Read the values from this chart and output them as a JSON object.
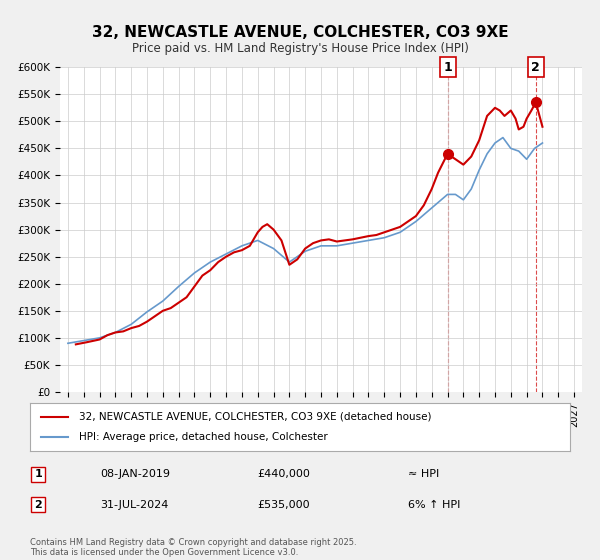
{
  "title": "32, NEWCASTLE AVENUE, COLCHESTER, CO3 9XE",
  "subtitle": "Price paid vs. HM Land Registry's House Price Index (HPI)",
  "background_color": "#f0f0f0",
  "plot_bg_color": "#ffffff",
  "line_color": "#cc0000",
  "hpi_color": "#6699cc",
  "ylim": [
    0,
    600000
  ],
  "xlim_min": 1994.5,
  "xlim_max": 2027.5,
  "yticks": [
    0,
    50000,
    100000,
    150000,
    200000,
    250000,
    300000,
    350000,
    400000,
    450000,
    500000,
    550000,
    600000
  ],
  "ytick_labels": [
    "£0",
    "£50K",
    "£100K",
    "£150K",
    "£200K",
    "£250K",
    "£300K",
    "£350K",
    "£400K",
    "£450K",
    "£500K",
    "£550K",
    "£600K"
  ],
  "xticks": [
    1995,
    1996,
    1997,
    1998,
    1999,
    2000,
    2001,
    2002,
    2003,
    2004,
    2005,
    2006,
    2007,
    2008,
    2009,
    2010,
    2011,
    2012,
    2013,
    2014,
    2015,
    2016,
    2017,
    2018,
    2019,
    2020,
    2021,
    2022,
    2023,
    2024,
    2025,
    2026,
    2027
  ],
  "marker1_x": 2019.03,
  "marker1_y": 440000,
  "marker1_label": "1",
  "marker1_date": "08-JAN-2019",
  "marker1_price": "£440,000",
  "marker1_hpi": "≈ HPI",
  "marker2_x": 2024.58,
  "marker2_y": 535000,
  "marker2_label": "2",
  "marker2_date": "31-JUL-2024",
  "marker2_price": "£535,000",
  "marker2_hpi": "6% ↑ HPI",
  "legend_line1": "32, NEWCASTLE AVENUE, COLCHESTER, CO3 9XE (detached house)",
  "legend_line2": "HPI: Average price, detached house, Colchester",
  "footnote": "Contains HM Land Registry data © Crown copyright and database right 2025.\nThis data is licensed under the Open Government Licence v3.0.",
  "hpi_data_x": [
    1995,
    1996,
    1997,
    1998,
    1999,
    2000,
    2001,
    2002,
    2003,
    2004,
    2005,
    2006,
    2007,
    2008,
    2009,
    2010,
    2011,
    2012,
    2013,
    2014,
    2015,
    2016,
    2017,
    2018,
    2019,
    2019.5,
    2020,
    2020.5,
    2021,
    2021.5,
    2022,
    2022.5,
    2023,
    2023.5,
    2024,
    2024.5,
    2025
  ],
  "hpi_data_y": [
    90000,
    95000,
    100000,
    110000,
    125000,
    148000,
    168000,
    195000,
    220000,
    240000,
    255000,
    270000,
    280000,
    265000,
    240000,
    260000,
    270000,
    270000,
    275000,
    280000,
    285000,
    295000,
    315000,
    340000,
    365000,
    365000,
    355000,
    375000,
    410000,
    440000,
    460000,
    470000,
    450000,
    445000,
    430000,
    450000,
    460000
  ],
  "price_data_x": [
    1995.5,
    1996.2,
    1997.0,
    1997.5,
    1998.0,
    1998.5,
    1999.0,
    1999.5,
    2000.0,
    2000.5,
    2001.0,
    2001.5,
    2002.0,
    2002.5,
    2003.0,
    2003.5,
    2004.0,
    2004.5,
    2005.0,
    2005.5,
    2006.0,
    2006.5,
    2007.0,
    2007.3,
    2007.6,
    2008.0,
    2008.5,
    2009.0,
    2009.5,
    2010.0,
    2010.5,
    2011.0,
    2011.5,
    2012.0,
    2012.5,
    2013.0,
    2013.5,
    2014.0,
    2014.5,
    2015.0,
    2015.5,
    2016.0,
    2016.5,
    2017.0,
    2017.5,
    2018.0,
    2018.2,
    2018.4,
    2019.0,
    2019.5,
    2020.0,
    2020.5,
    2021.0,
    2021.5,
    2022.0,
    2022.3,
    2022.6,
    2023.0,
    2023.3,
    2023.5,
    2023.8,
    2024.0,
    2024.3,
    2024.58,
    2025.0
  ],
  "price_data_y": [
    88000,
    92000,
    97000,
    105000,
    110000,
    112000,
    118000,
    122000,
    130000,
    140000,
    150000,
    155000,
    165000,
    175000,
    195000,
    215000,
    225000,
    240000,
    250000,
    258000,
    262000,
    270000,
    295000,
    305000,
    310000,
    300000,
    280000,
    235000,
    245000,
    265000,
    275000,
    280000,
    282000,
    278000,
    280000,
    282000,
    285000,
    288000,
    290000,
    295000,
    300000,
    305000,
    315000,
    325000,
    345000,
    375000,
    390000,
    405000,
    440000,
    430000,
    420000,
    435000,
    465000,
    510000,
    525000,
    520000,
    510000,
    520000,
    505000,
    485000,
    490000,
    505000,
    520000,
    535000,
    490000
  ]
}
